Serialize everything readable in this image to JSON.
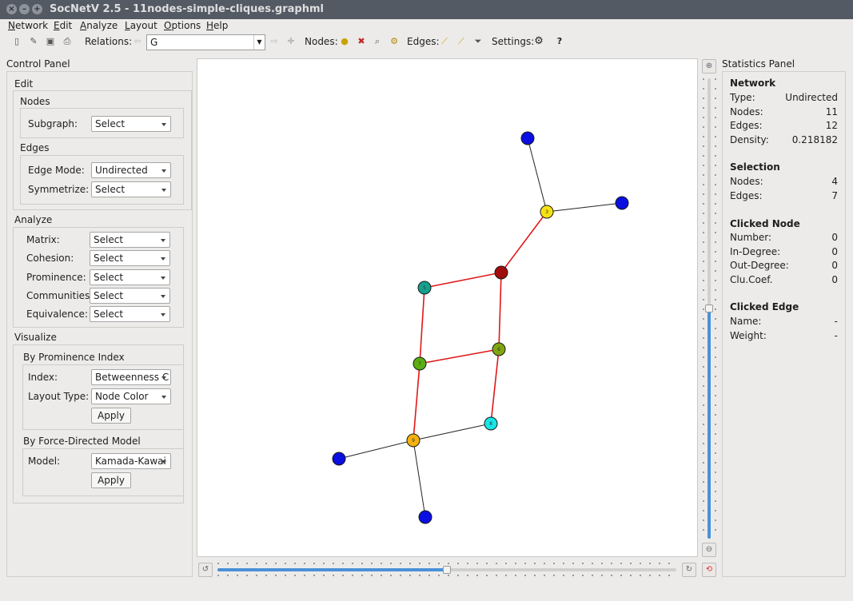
{
  "window": {
    "title": "SocNetV 2.5 - 11nodes-simple-cliques.graphml"
  },
  "menu": [
    "Network",
    "Edit",
    "Analyze",
    "Layout",
    "Options",
    "Help"
  ],
  "toolbar": {
    "relations_label": "Relations:",
    "relation_value": "G",
    "nodes_label": "Nodes:",
    "edges_label": "Edges:",
    "settings_label": "Settings:"
  },
  "control_panel": {
    "title": "Control Panel",
    "edit_label": "Edit",
    "nodes_label": "Nodes",
    "subgraph_label": "Subgraph:",
    "subgraph_value": "Select",
    "edges_label": "Edges",
    "edge_mode_label": "Edge Mode:",
    "edge_mode_value": "Undirected",
    "symmetrize_label": "Symmetrize:",
    "symmetrize_value": "Select",
    "analyze_label": "Analyze",
    "analyze_fields": [
      {
        "label": "Matrix:",
        "value": "Select"
      },
      {
        "label": "Cohesion:",
        "value": "Select"
      },
      {
        "label": "Prominence:",
        "value": "Select"
      },
      {
        "label": "Communities:",
        "value": "Select"
      },
      {
        "label": "Equivalence:",
        "value": "Select"
      }
    ],
    "visualize_label": "Visualize",
    "by_prominence_label": "By Prominence Index",
    "index_label": "Index:",
    "index_value": "Betweenness C",
    "layout_type_label": "Layout Type:",
    "layout_type_value": "Node Color",
    "apply_label": "Apply",
    "by_force_label": "By Force-Directed Model",
    "model_label": "Model:",
    "model_value": "Kamada-Kawai"
  },
  "graph": {
    "nodes": [
      {
        "id": "n1",
        "label": "",
        "color": "#0a0ee0"
      },
      {
        "id": "n2",
        "label": "",
        "color": "#0a0ee0"
      },
      {
        "id": "3",
        "label": "3",
        "color": "#f5e215"
      },
      {
        "id": "n4",
        "label": "",
        "color": "#a00c0c"
      },
      {
        "id": "5",
        "label": "5",
        "color": "#14a08c"
      },
      {
        "id": "6",
        "label": "6",
        "color": "#7fa60e"
      },
      {
        "id": "7",
        "label": "7",
        "color": "#5aad12"
      },
      {
        "id": "8",
        "label": "8",
        "color": "#18e6e6"
      },
      {
        "id": "9",
        "label": "9",
        "color": "#f5b20e"
      },
      {
        "id": "n10",
        "label": "",
        "color": "#0a0ee0"
      },
      {
        "id": "n11",
        "label": "",
        "color": "#0a0ee0"
      }
    ],
    "edges": [
      {
        "from": "n1",
        "to": "3",
        "color": "#222222"
      },
      {
        "from": "3",
        "to": "n2",
        "color": "#222222"
      },
      {
        "from": "3",
        "to": "n4",
        "color": "#e01818"
      },
      {
        "from": "n4",
        "to": "5",
        "color": "#e01818"
      },
      {
        "from": "n4",
        "to": "6",
        "color": "#e01818"
      },
      {
        "from": "5",
        "to": "7",
        "color": "#e01818"
      },
      {
        "from": "7",
        "to": "6",
        "color": "#e01818"
      },
      {
        "from": "7",
        "to": "9",
        "color": "#e01818"
      },
      {
        "from": "6",
        "to": "8",
        "color": "#e01818"
      },
      {
        "from": "8",
        "to": "9",
        "color": "#222222"
      },
      {
        "from": "9",
        "to": "n10",
        "color": "#222222"
      },
      {
        "from": "9",
        "to": "n11",
        "color": "#222222"
      }
    ]
  },
  "stats": {
    "title": "Statistics Panel",
    "network_head": "Network",
    "type_label": "Type:",
    "type_value": "Undirected",
    "nodes_label": "Nodes:",
    "nodes_value": "11",
    "edges_label": "Edges:",
    "edges_value": "12",
    "density_label": "Density:",
    "density_value": "0.218182",
    "selection_head": "Selection",
    "sel_nodes_label": "Nodes:",
    "sel_nodes_value": "4",
    "sel_edges_label": "Edges:",
    "sel_edges_value": "7",
    "clicked_node_head": "Clicked Node",
    "number_label": "Number:",
    "number_value": "0",
    "indegree_label": "In-Degree:",
    "indegree_value": "0",
    "outdegree_label": "Out-Degree:",
    "outdegree_value": "0",
    "clucoef_label": "Clu.Coef.",
    "clucoef_value": "0",
    "clicked_edge_head": "Clicked Edge",
    "name_label": "Name:",
    "name_value": "-",
    "weight_label": "Weight:",
    "weight_value": "-"
  },
  "zoom": {
    "level": 0.5
  },
  "rotation": {
    "level": 0.5
  }
}
